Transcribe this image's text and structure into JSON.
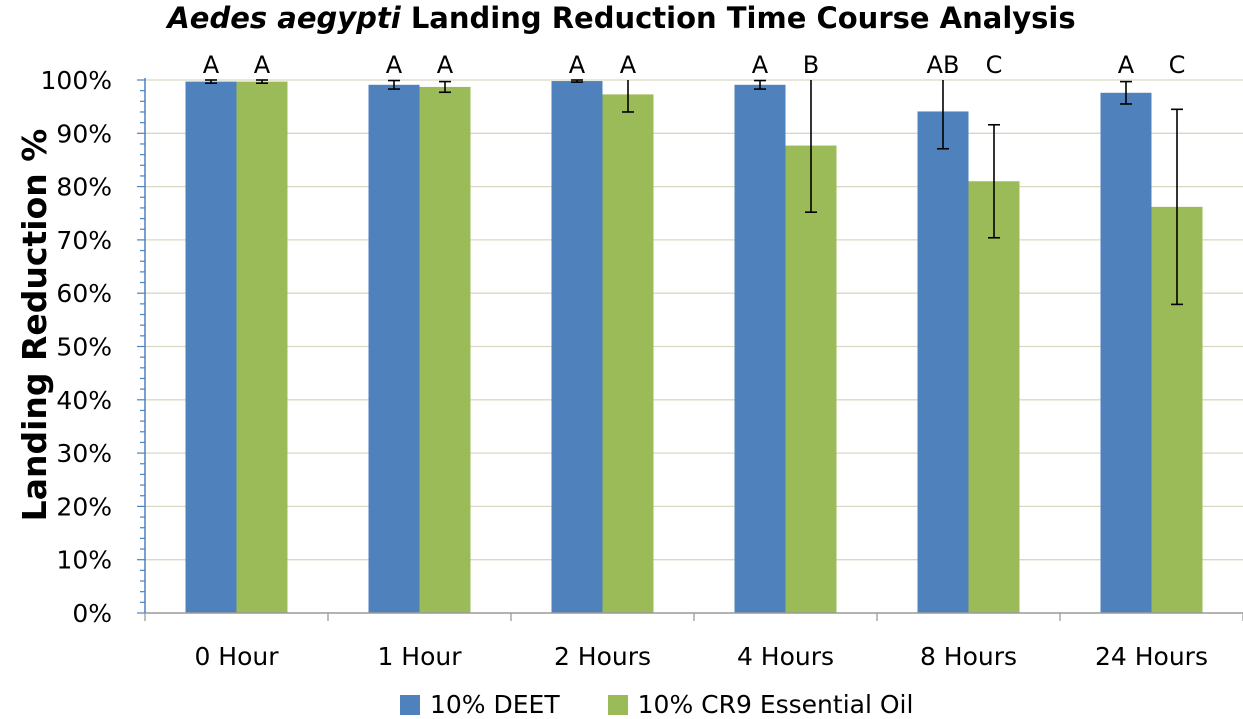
{
  "chart_data": {
    "type": "bar",
    "title_italic": "Aedes aegypti",
    "title_rest": " Landing Reduction Time Course Analysis",
    "ylabel": "Landing Reduction %",
    "xlabel": "",
    "ylim": [
      0,
      100
    ],
    "ytick_labels": [
      "0%",
      "10%",
      "20%",
      "30%",
      "40%",
      "50%",
      "60%",
      "70%",
      "80%",
      "90%",
      "100%"
    ],
    "grid": true,
    "legend_position": "bottom",
    "categories": [
      "0 Hour",
      "1 Hour",
      "2 Hours",
      "4 Hours",
      "8 Hours",
      "24 Hours"
    ],
    "series": [
      {
        "name": "10% DEET",
        "color": "#4f81bd",
        "values": [
          99.7,
          99.1,
          99.8,
          99.1,
          94.1,
          97.6
        ],
        "error": [
          0.3,
          0.8,
          0.2,
          0.8,
          7.0,
          2.1
        ],
        "letters": [
          "A",
          "A",
          "A",
          "A",
          "AB",
          "A"
        ]
      },
      {
        "name": "10% CR9 Essential Oil",
        "color": "#9bbb59",
        "values": [
          99.7,
          98.7,
          97.3,
          87.7,
          81.0,
          76.2
        ],
        "error": [
          0.3,
          1.0,
          3.3,
          12.5,
          10.6,
          18.3
        ],
        "letters": [
          "A",
          "A",
          "A",
          "B",
          "C",
          "C"
        ]
      }
    ]
  }
}
